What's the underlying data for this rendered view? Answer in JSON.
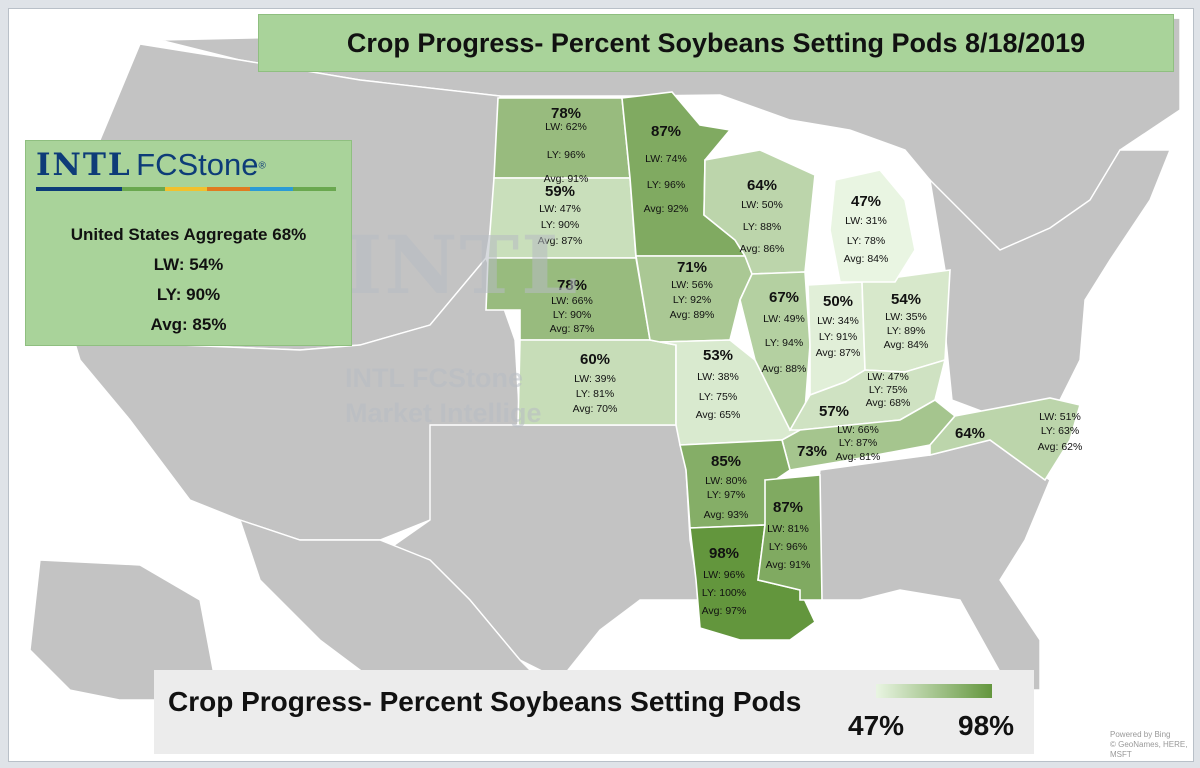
{
  "title": "Crop Progress- Percent Soybeans Setting Pods 8/18/2019",
  "logo": {
    "text_left": "INTL",
    "text_right": "FCStone",
    "registered_mark": "®"
  },
  "watermark": {
    "big": "INTL",
    "line1": "INTL FCStone",
    "line2": "Market Intellige"
  },
  "aggregate": {
    "headline": "United States Aggregate 68%",
    "lw": "LW: 54%",
    "ly": "LY: 90%",
    "avg": "Avg: 85%"
  },
  "legend": {
    "title": "Crop Progress- Percent Soybeans Setting Pods",
    "min_label": "47%",
    "max_label": "98%",
    "color_min": "#e9f5e2",
    "color_max": "#63963d"
  },
  "credit": [
    "Powered by Bing",
    "© GeoNames, HERE, MSFT"
  ],
  "colors": {
    "land": "#c3c3c3",
    "banner": "#a9d39a",
    "background": "#ffffff"
  },
  "chart_data": {
    "type": "choropleth",
    "value_range": [
      47,
      98
    ],
    "states": [
      {
        "state": "North Dakota",
        "pct": "78%",
        "lw": "LW: 62%",
        "ly": "LY: 96%",
        "avg": "Avg: 91%",
        "value": 78
      },
      {
        "state": "Minnesota",
        "pct": "87%",
        "lw": "LW: 74%",
        "ly": "LY: 96%",
        "avg": "Avg: 92%",
        "value": 87
      },
      {
        "state": "South Dakota",
        "pct": "59%",
        "lw": "LW: 47%",
        "ly": "LY: 90%",
        "avg": "Avg: 87%",
        "value": 59
      },
      {
        "state": "Wisconsin",
        "pct": "64%",
        "lw": "LW: 50%",
        "ly": "LY: 88%",
        "avg": "Avg: 86%",
        "value": 64
      },
      {
        "state": "Michigan",
        "pct": "47%",
        "lw": "LW: 31%",
        "ly": "LY: 78%",
        "avg": "Avg: 84%",
        "value": 47
      },
      {
        "state": "Nebraska",
        "pct": "78%",
        "lw": "LW: 66%",
        "ly": "LY: 90%",
        "avg": "Avg: 87%",
        "value": 78
      },
      {
        "state": "Iowa",
        "pct": "71%",
        "lw": "LW: 56%",
        "ly": "LY: 92%",
        "avg": "Avg: 89%",
        "value": 71
      },
      {
        "state": "Illinois",
        "pct": "67%",
        "lw": "LW: 49%",
        "ly": "LY: 94%",
        "avg": "Avg: 88%",
        "value": 67
      },
      {
        "state": "Indiana",
        "pct": "50%",
        "lw": "LW: 34%",
        "ly": "LY: 91%",
        "avg": "Avg: 87%",
        "value": 50
      },
      {
        "state": "Ohio",
        "pct": "54%",
        "lw": "LW: 35%",
        "ly": "LY: 89%",
        "avg": "Avg: 84%",
        "value": 54
      },
      {
        "state": "Kansas",
        "pct": "60%",
        "lw": "LW: 39%",
        "ly": "LY: 81%",
        "avg": "Avg: 70%",
        "value": 60
      },
      {
        "state": "Missouri",
        "pct": "53%",
        "lw": "LW: 38%",
        "ly": "LY: 75%",
        "avg": "Avg: 65%",
        "value": 53
      },
      {
        "state": "Kentucky",
        "pct": "57%",
        "lw": "LW: 47%",
        "ly": "LY: 75%",
        "avg": "Avg: 68%",
        "value": 57
      },
      {
        "state": "Tennessee",
        "pct": "73%",
        "lw": "LW: 66%",
        "ly": "LY: 87%",
        "avg": "Avg: 81%",
        "value": 73
      },
      {
        "state": "North Carolina",
        "pct": "64%",
        "lw": "LW: 51%",
        "ly": "LY: 63%",
        "avg": "Avg: 62%",
        "value": 64
      },
      {
        "state": "Arkansas",
        "pct": "85%",
        "lw": "LW: 80%",
        "ly": "LY: 97%",
        "avg": "Avg: 93%",
        "value": 85
      },
      {
        "state": "Mississippi",
        "pct": "87%",
        "lw": "LW: 81%",
        "ly": "LY: 96%",
        "avg": "Avg: 91%",
        "value": 87
      },
      {
        "state": "Louisiana",
        "pct": "98%",
        "lw": "LW: 96%",
        "ly": "LY: 100%",
        "avg": "Avg: 97%",
        "value": 98
      }
    ]
  }
}
